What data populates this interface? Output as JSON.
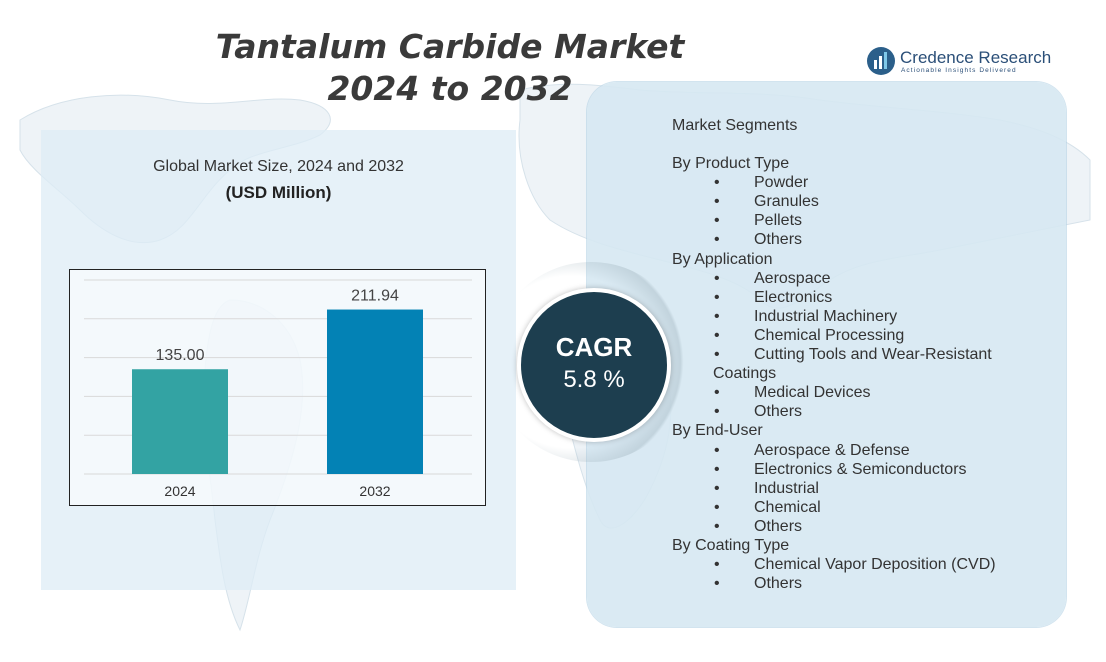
{
  "title_line1": "Tantalum Carbide Market",
  "title_line2": "2024 to 2032",
  "logo": {
    "name": "Credence Research",
    "tagline": "Actionable Insights Delivered",
    "icon": "bar-chart-logo-icon"
  },
  "chart_title": "Global Market Size, 2024 and 2032",
  "chart_unit": "(USD Million)",
  "chart_data": {
    "type": "bar",
    "categories": [
      "2024",
      "2032"
    ],
    "values": [
      135.0,
      211.94
    ],
    "value_labels": [
      "135.00",
      "211.94"
    ],
    "colors": [
      "#33a3a3",
      "#0382b5"
    ],
    "ylim": [
      0,
      250
    ],
    "grid": true
  },
  "cagr": {
    "label": "CAGR",
    "value": "5.8 %"
  },
  "segments": {
    "title": "Market Segments",
    "groups": [
      {
        "heading": "By Product Type",
        "items": [
          "Powder",
          "Granules",
          "Pellets",
          "Others"
        ]
      },
      {
        "heading": "By Application",
        "items": [
          "Aerospace",
          "Electronics",
          "Industrial Machinery",
          "Chemical Processing",
          "Cutting Tools and Wear-Resistant",
          "Medical Devices",
          "Others"
        ],
        "continuation": {
          "after": 4,
          "text": "Coatings"
        }
      },
      {
        "heading": "By End-User",
        "items": [
          "Aerospace & Defense",
          "Electronics & Semiconductors",
          "Industrial",
          "Chemical",
          "Others"
        ]
      },
      {
        "heading": "By Coating Type",
        "items": [
          "Chemical Vapor Deposition (CVD)",
          "Others"
        ]
      }
    ]
  }
}
